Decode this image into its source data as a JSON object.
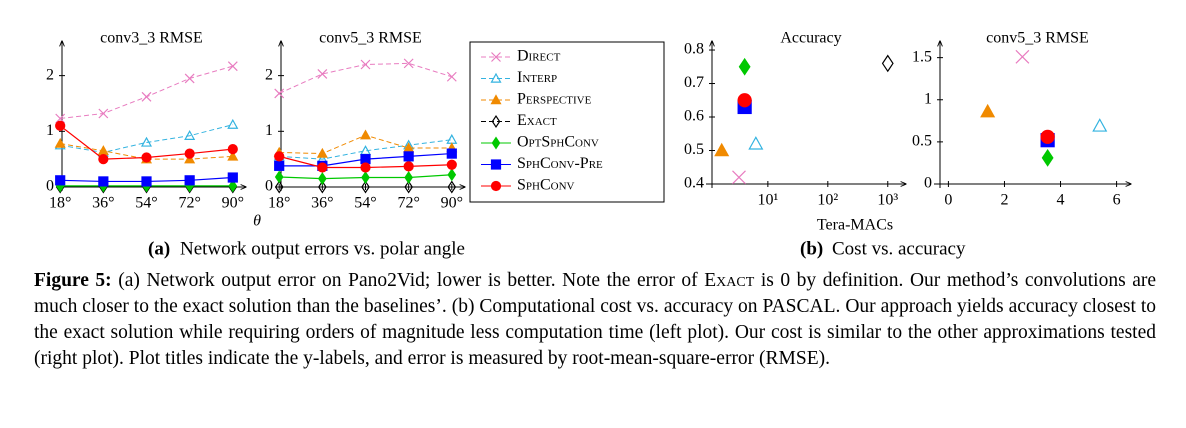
{
  "chart_data": [
    {
      "type": "line",
      "title": "conv3_3 RMSE",
      "xlabel": "θ",
      "x": [
        18,
        36,
        54,
        72,
        90
      ],
      "xlim": [
        15,
        93
      ],
      "xticks": [
        {
          "value": 18,
          "label": "18°"
        },
        {
          "value": 36,
          "label": "36°"
        },
        {
          "value": 54,
          "label": "54°"
        },
        {
          "value": 72,
          "label": "72°"
        },
        {
          "value": 90,
          "label": "90°"
        }
      ],
      "ylim": [
        0,
        2.55
      ],
      "yticks": [
        0,
        1,
        2
      ],
      "series": [
        {
          "name": "Direct",
          "color": "#e87cc0",
          "marker": "x",
          "dashed": true,
          "values": [
            1.23,
            1.32,
            1.62,
            1.95,
            2.17
          ]
        },
        {
          "name": "Interp",
          "color": "#33b3e0",
          "marker": "triangle-open",
          "dashed": true,
          "values": [
            0.75,
            0.62,
            0.8,
            0.92,
            1.12
          ]
        },
        {
          "name": "Perspective",
          "color": "#f08a00",
          "marker": "triangle",
          "dashed": true,
          "values": [
            0.78,
            0.65,
            0.5,
            0.5,
            0.55
          ]
        },
        {
          "name": "Exact",
          "color": "#000000",
          "marker": "diamond-open",
          "dashed": true,
          "values": [
            0,
            0,
            0,
            0,
            0
          ]
        },
        {
          "name": "OptSphConv",
          "color": "#00c800",
          "marker": "diamond",
          "dashed": false,
          "values": [
            0.02,
            0.02,
            0.02,
            0.02,
            0.02
          ]
        },
        {
          "name": "SphConv-Pre",
          "color": "#0000ff",
          "marker": "square",
          "dashed": false,
          "values": [
            0.12,
            0.1,
            0.1,
            0.12,
            0.17
          ]
        },
        {
          "name": "SphConv",
          "color": "#ff0000",
          "marker": "circle",
          "dashed": false,
          "values": [
            1.1,
            0.5,
            0.53,
            0.6,
            0.68
          ]
        }
      ]
    },
    {
      "type": "line",
      "title": "conv5_3 RMSE",
      "x": [
        18,
        36,
        54,
        72,
        90
      ],
      "xlim": [
        15,
        93
      ],
      "xticks": [
        {
          "value": 18,
          "label": "18°"
        },
        {
          "value": 36,
          "label": "36°"
        },
        {
          "value": 54,
          "label": "54°"
        },
        {
          "value": 72,
          "label": "72°"
        },
        {
          "value": 90,
          "label": "90°"
        }
      ],
      "ylim": [
        0,
        2.55
      ],
      "yticks": [
        0,
        1,
        2
      ],
      "series": [
        {
          "color": "#e87cc0",
          "marker": "x",
          "dashed": true,
          "values": [
            1.68,
            2.03,
            2.2,
            2.22,
            1.98
          ]
        },
        {
          "color": "#33b3e0",
          "marker": "triangle-open",
          "dashed": true,
          "values": [
            0.55,
            0.5,
            0.65,
            0.75,
            0.85
          ]
        },
        {
          "color": "#f08a00",
          "marker": "triangle",
          "dashed": true,
          "values": [
            0.62,
            0.6,
            0.93,
            0.7,
            0.7
          ]
        },
        {
          "color": "#000000",
          "marker": "diamond-open",
          "dashed": true,
          "values": [
            0,
            0,
            0,
            0,
            0
          ]
        },
        {
          "color": "#00c800",
          "marker": "diamond",
          "dashed": false,
          "values": [
            0.18,
            0.15,
            0.17,
            0.17,
            0.22
          ]
        },
        {
          "color": "#0000ff",
          "marker": "square",
          "dashed": false,
          "values": [
            0.38,
            0.38,
            0.5,
            0.55,
            0.6
          ]
        },
        {
          "color": "#ff0000",
          "marker": "circle",
          "dashed": false,
          "values": [
            0.55,
            0.35,
            0.35,
            0.37,
            0.4
          ]
        }
      ]
    },
    {
      "type": "scatter",
      "title": "Accuracy",
      "xlabel": "Tera-MACs",
      "xlog": true,
      "xlim": [
        1.17,
        1600
      ],
      "xticks": [
        {
          "value": 10,
          "label": "10¹"
        },
        {
          "value": 100,
          "label": "10²"
        },
        {
          "value": 1000,
          "label": "10³"
        }
      ],
      "ylim": [
        0.4,
        0.815
      ],
      "yticks": [
        0.4,
        0.5,
        0.6,
        0.7,
        0.8
      ],
      "series": [
        {
          "color": "#e87cc0",
          "marker": "x",
          "x": [
            3.3
          ],
          "values": [
            0.42
          ]
        },
        {
          "color": "#33b3e0",
          "marker": "triangle-open",
          "x": [
            6.3
          ],
          "values": [
            0.52
          ]
        },
        {
          "color": "#f08a00",
          "marker": "triangle",
          "x": [
            1.7
          ],
          "values": [
            0.5
          ]
        },
        {
          "color": "#000000",
          "marker": "diamond-open",
          "x": [
            1000
          ],
          "values": [
            0.76
          ]
        },
        {
          "color": "#00c800",
          "marker": "diamond",
          "x": [
            4.1
          ],
          "values": [
            0.75
          ]
        },
        {
          "color": "#0000ff",
          "marker": "square",
          "x": [
            4.1
          ],
          "values": [
            0.63
          ]
        },
        {
          "color": "#ff0000",
          "marker": "circle",
          "x": [
            4.1
          ],
          "values": [
            0.65
          ]
        }
      ]
    },
    {
      "type": "scatter",
      "title": "conv5_3 RMSE",
      "xlim": [
        -0.3,
        6.3
      ],
      "xticks": [
        0,
        2,
        4,
        6
      ],
      "ylim": [
        0,
        1.65
      ],
      "yticks": [
        0,
        0.5,
        1,
        1.5
      ],
      "series": [
        {
          "color": "#e87cc0",
          "marker": "x",
          "x": [
            2.64
          ],
          "values": [
            1.51
          ]
        },
        {
          "color": "#33b3e0",
          "marker": "triangle-open",
          "x": [
            5.4
          ],
          "values": [
            0.69
          ]
        },
        {
          "color": "#f08a00",
          "marker": "triangle",
          "x": [
            1.4
          ],
          "values": [
            0.86
          ]
        },
        {
          "color": "#00c800",
          "marker": "diamond",
          "x": [
            3.54
          ],
          "values": [
            0.31
          ]
        },
        {
          "color": "#0000ff",
          "marker": "square",
          "x": [
            3.54
          ],
          "values": [
            0.52
          ]
        },
        {
          "color": "#ff0000",
          "marker": "circle",
          "x": [
            3.54
          ],
          "values": [
            0.56
          ]
        }
      ]
    }
  ],
  "subcaptions": [
    {
      "label": "(a)",
      "text": "Network output errors vs. polar angle"
    },
    {
      "label": "(b)",
      "text": "Cost vs. accuracy"
    }
  ],
  "caption": {
    "label": "Figure 5:",
    "parts": [
      "(a) Network output error on Pano2Vid; lower is better. Note the error of ",
      "Exact",
      " is 0 by definition. Our method’s convolutions are much closer to the exact solution than the baselines’. (b) Computational cost vs. accuracy on PASCAL. Our approach yields accuracy closest to the exact solution while requiring orders of magnitude less computation time (left plot). Our cost is similar to the other approximations tested (right plot). Plot titles indicate the y-labels, and error is measured by root-mean-square-error (RMSE)."
    ]
  }
}
